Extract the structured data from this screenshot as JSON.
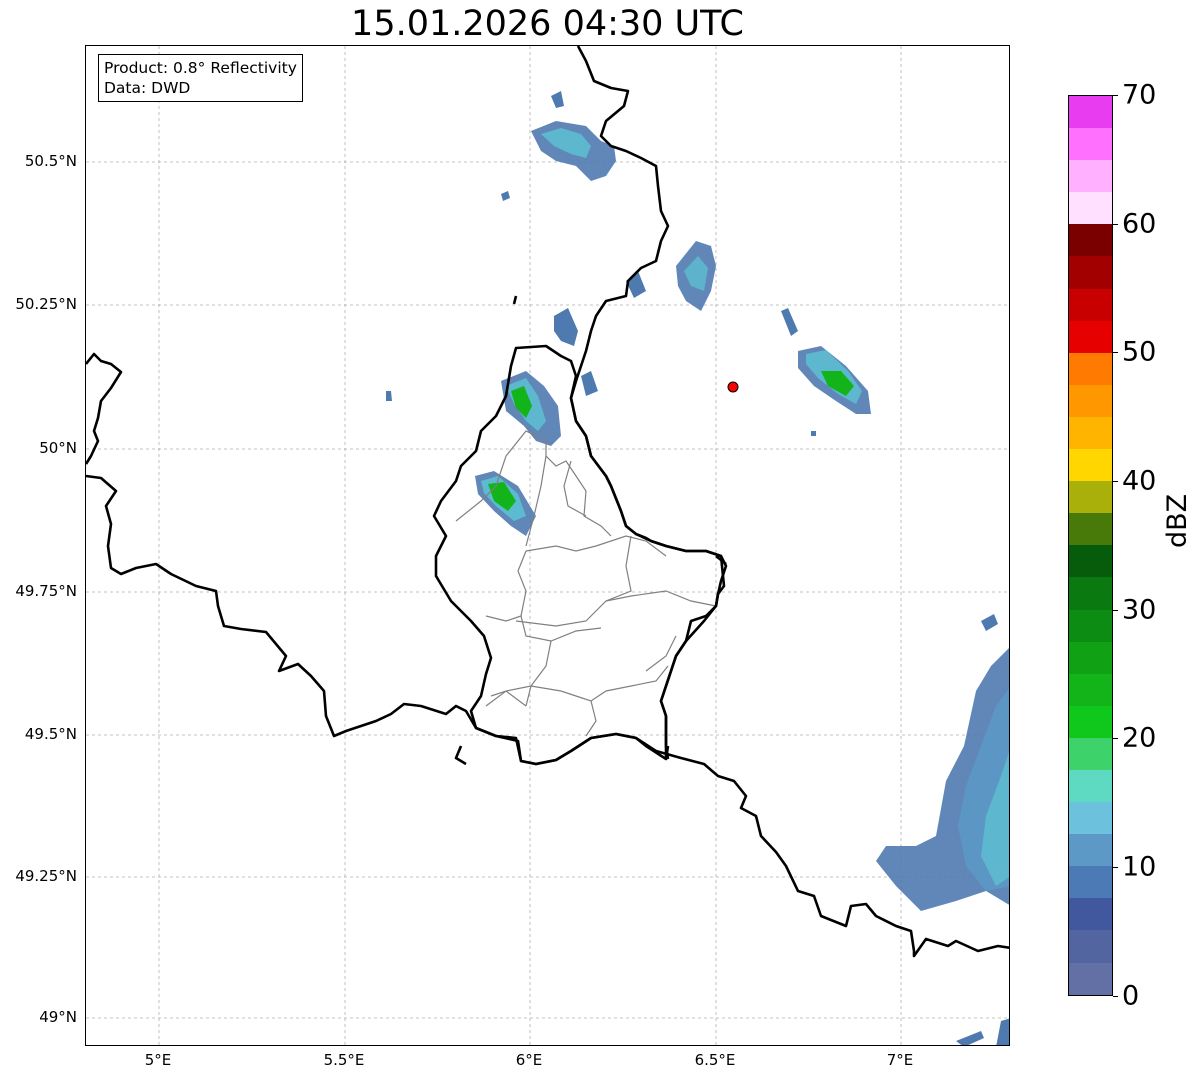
{
  "title": "15.01.2026 04:30 UTC",
  "info": {
    "product": "Product: 0.8° Reflectivity",
    "data": "Data: DWD"
  },
  "axes": {
    "lat_labels": [
      "50.5°N",
      "50.25°N",
      "50°N",
      "49.75°N",
      "49.5°N",
      "49.25°N",
      "49°N"
    ],
    "lon_labels": [
      "5°E",
      "5.5°E",
      "6°E",
      "6.5°E",
      "7°E"
    ]
  },
  "colorbar": {
    "label": "dBZ",
    "ticks": [
      "0",
      "10",
      "20",
      "30",
      "40",
      "50",
      "60",
      "70"
    ],
    "colors": [
      "#6270a6",
      "#5365a0",
      "#42589e",
      "#4b7ab4",
      "#5c99c6",
      "#6cc1dc",
      "#5ed9c2",
      "#3ed26a",
      "#10c81c",
      "#12b41a",
      "#10a214",
      "#0c8c12",
      "#0a7a10",
      "#075c0c",
      "#487a0a",
      "#aab00a",
      "#ffd600",
      "#ffb400",
      "#ff9800",
      "#ff7a00",
      "#e60000",
      "#c80000",
      "#a20000",
      "#7a0000",
      "#ffe0ff",
      "#ffb0ff",
      "#ff70ff",
      "#e83cf0"
    ]
  },
  "radar_site_color": "#ff0000"
}
